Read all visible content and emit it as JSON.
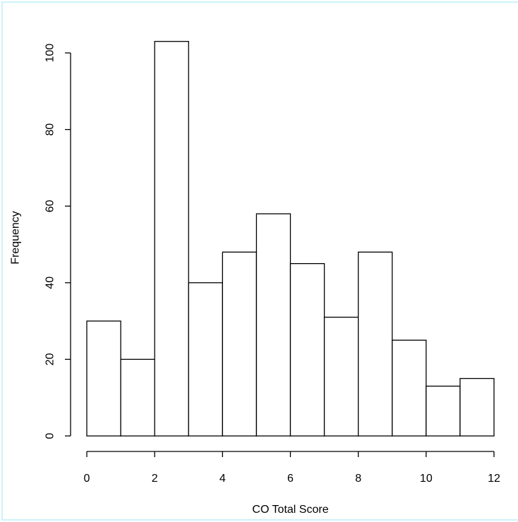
{
  "chart_data": {
    "type": "bar",
    "subtype": "histogram",
    "title": "",
    "xlabel": "CO Total Score",
    "ylabel": "Frequency",
    "bin_edges": [
      0,
      1,
      2,
      3,
      4,
      5,
      6,
      7,
      8,
      9,
      10,
      11,
      12
    ],
    "values": [
      30,
      20,
      103,
      40,
      48,
      58,
      45,
      31,
      48,
      25,
      13,
      15
    ],
    "xlim": [
      0,
      12
    ],
    "ylim": [
      0,
      100
    ],
    "x_ticks": [
      0,
      2,
      4,
      6,
      8,
      10,
      12
    ],
    "y_ticks": [
      0,
      20,
      40,
      60,
      80,
      100
    ],
    "grid": false,
    "bar_fill": "#ffffff",
    "bar_stroke": "#000000"
  }
}
